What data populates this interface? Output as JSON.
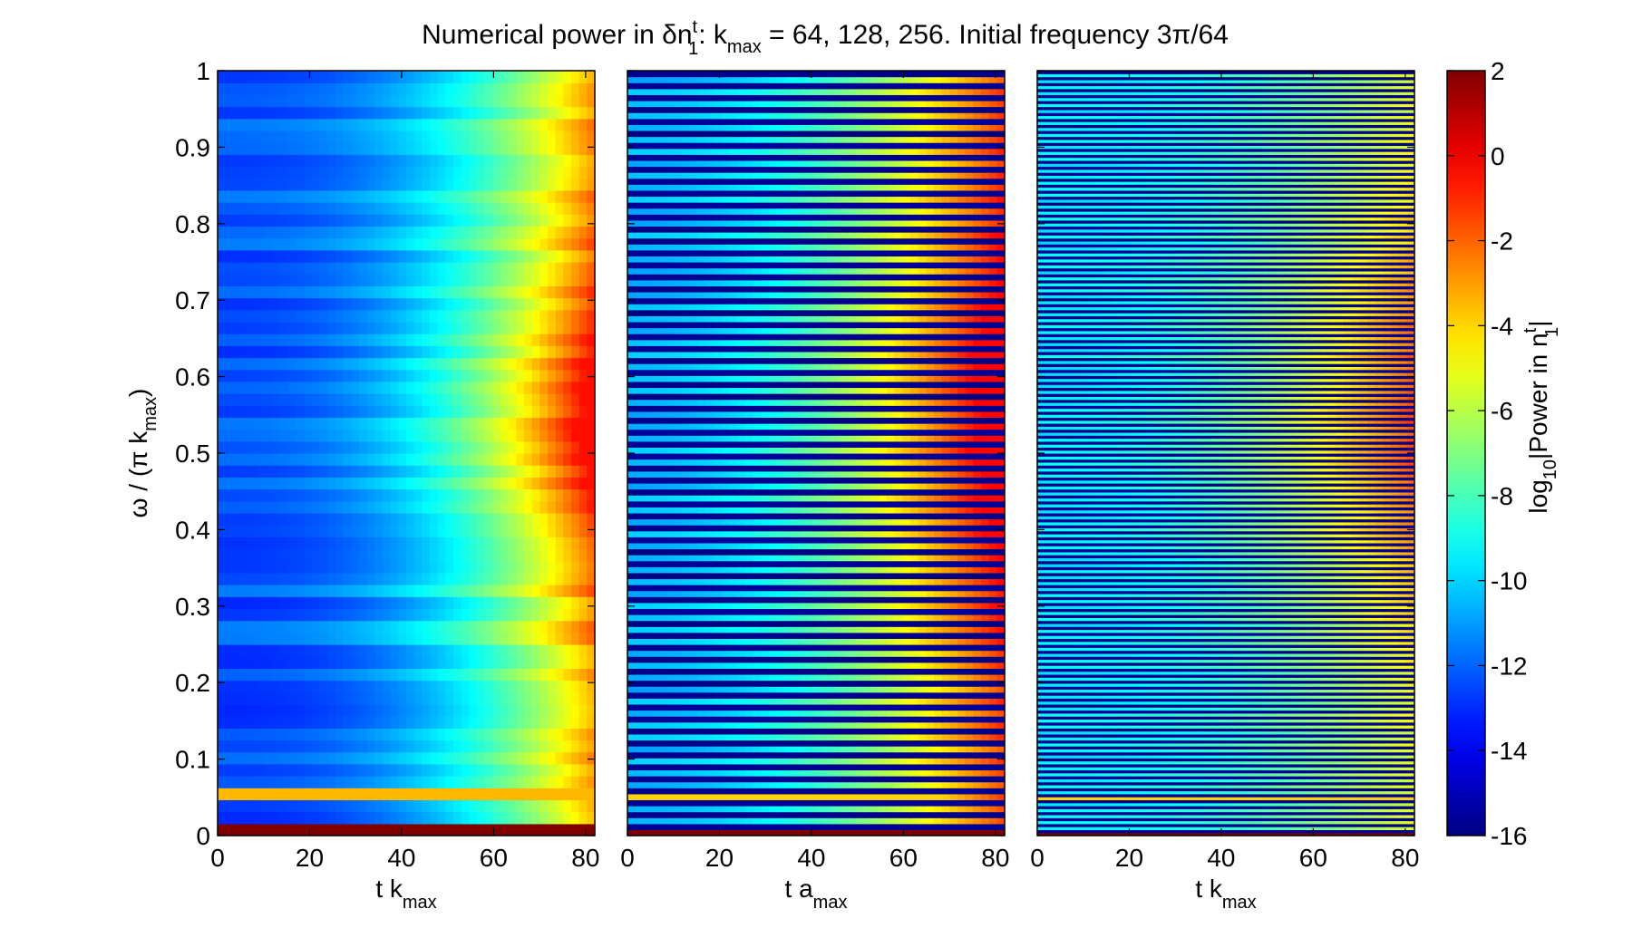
{
  "title_parts": {
    "pre": "Numerical power in δn",
    "sup1": "t",
    "sub1": "1",
    "mid": ": k",
    "sub2": "max",
    "post": " = 64, 128, 256. Initial frequency 3π/64"
  },
  "ylabel_parts": {
    "pre": "ω / (π k",
    "sub": "max",
    "post": ")"
  },
  "cbar_label_parts": {
    "pre": "log",
    "sub": "10",
    "mid": "|Power in n",
    "sup": "t",
    "sub2": "1",
    "post": "|"
  },
  "xlabels": [
    {
      "main": "t k",
      "sub": "max"
    },
    {
      "main": "t a",
      "sub": "max"
    },
    {
      "main": "t k",
      "sub": "max"
    }
  ],
  "chart_data": {
    "type": "heatmap",
    "title": "Numerical power in δn_1^t: k_max = 64, 128, 256. Initial frequency 3π/64",
    "panels": [
      {
        "k_max": 64,
        "xlabel": "t k_max",
        "rows": 64,
        "cols": 48
      },
      {
        "k_max": 128,
        "xlabel": "t a_max",
        "rows": 128,
        "cols": 48
      },
      {
        "k_max": 256,
        "xlabel": "t k_max",
        "rows": 256,
        "cols": 48
      }
    ],
    "xlim": [
      0,
      82
    ],
    "ylim": [
      0,
      1
    ],
    "xticks": [
      0,
      20,
      40,
      60,
      80
    ],
    "yticks": [
      0,
      0.1,
      0.2,
      0.3,
      0.4,
      0.5,
      0.6,
      0.7,
      0.8,
      0.9,
      1
    ],
    "ytick_labels": [
      "0",
      "0.1",
      "0.2",
      "0.3",
      "0.4",
      "0.5",
      "0.6",
      "0.7",
      "0.8",
      "0.9",
      "1"
    ],
    "ylabel": "ω / (π k_max)",
    "colorbar": {
      "label": "log10|Power in n_1^t|",
      "range": [
        -16,
        2
      ],
      "ticks": [
        2,
        0,
        -2,
        -4,
        -6,
        -8,
        -10,
        -12,
        -14,
        -16
      ],
      "tick_labels": [
        "2",
        "0",
        "-2",
        "-4",
        "-6",
        "-8",
        "-10",
        "-12",
        "-14",
        "-16"
      ],
      "colormap": "jet"
    },
    "initial_frequency": "3π/64",
    "features": {
      "dc_row_value": 2,
      "initial_frequency_row_value": -3.5,
      "left_panel_background": -12,
      "left_panel_max_at_t80": -0.5,
      "odd_modes_value": -16
    }
  }
}
